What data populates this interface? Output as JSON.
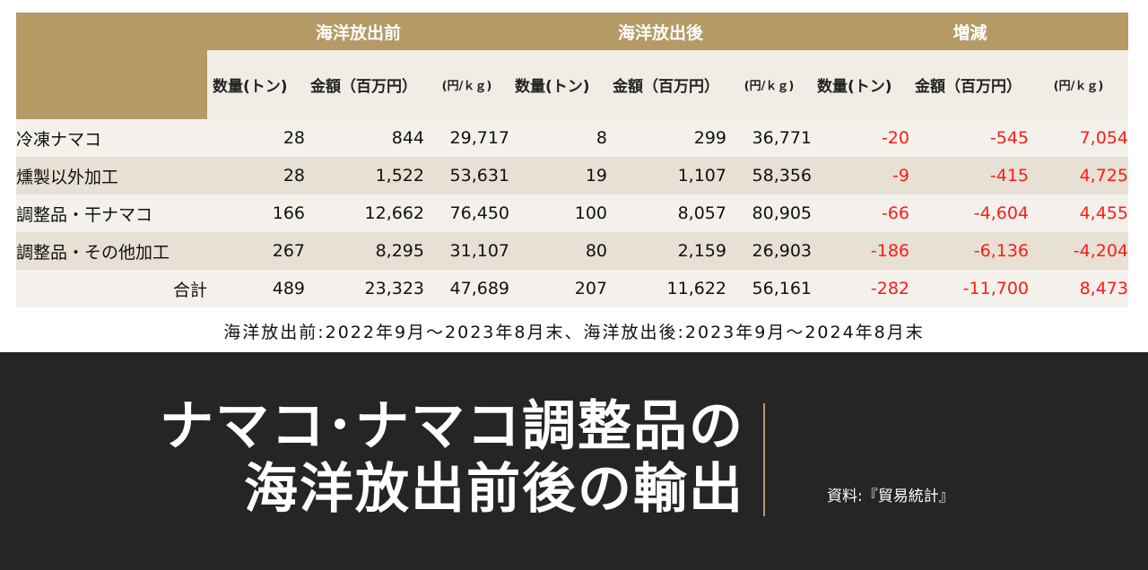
{
  "chart_data": {
    "type": "table",
    "title_lines": [
      "ナマコ･ナマコ調整品の",
      "海洋放出前後の輸出"
    ],
    "column_groups": [
      "海洋放出前",
      "海洋放出後",
      "増減"
    ],
    "sub_columns": [
      "数量(トン)",
      "金額（百万円）",
      "(円/ｋｇ)"
    ],
    "rows": [
      {
        "label": "冷凍ナマコ",
        "before": [
          "28",
          "844",
          "29,717"
        ],
        "after": [
          "8",
          "299",
          "36,771"
        ],
        "change": [
          "-20",
          "-545",
          "7,054"
        ]
      },
      {
        "label": "燻製以外加工",
        "before": [
          "28",
          "1,522",
          "53,631"
        ],
        "after": [
          "19",
          "1,107",
          "58,356"
        ],
        "change": [
          "-9",
          "-415",
          "4,725"
        ]
      },
      {
        "label": "調整品・干ナマコ",
        "before": [
          "166",
          "12,662",
          "76,450"
        ],
        "after": [
          "100",
          "8,057",
          "80,905"
        ],
        "change": [
          "-66",
          "-4,604",
          "4,455"
        ]
      },
      {
        "label": "調整品・その他加工",
        "before": [
          "267",
          "8,295",
          "31,107"
        ],
        "after": [
          "80",
          "2,159",
          "26,903"
        ],
        "change": [
          "-186",
          "-6,136",
          "-4,204"
        ]
      },
      {
        "label": "合計",
        "before": [
          "489",
          "23,323",
          "47,689"
        ],
        "after": [
          "207",
          "11,622",
          "56,161"
        ],
        "change": [
          "-282",
          "-11,700",
          "8,473"
        ]
      }
    ],
    "period_note": "海洋放出前:2022年9月～2023年8月末、海洋放出後:2023年9月～2024年8月末",
    "source_note": "資料:『貿易統計』"
  },
  "colors": {
    "header_gold": "#b59a66",
    "row_light": "#f4f1ec",
    "row_dark": "#e7e0d4",
    "change_red": "#ff1a1a",
    "panel_dark": "#252525"
  }
}
